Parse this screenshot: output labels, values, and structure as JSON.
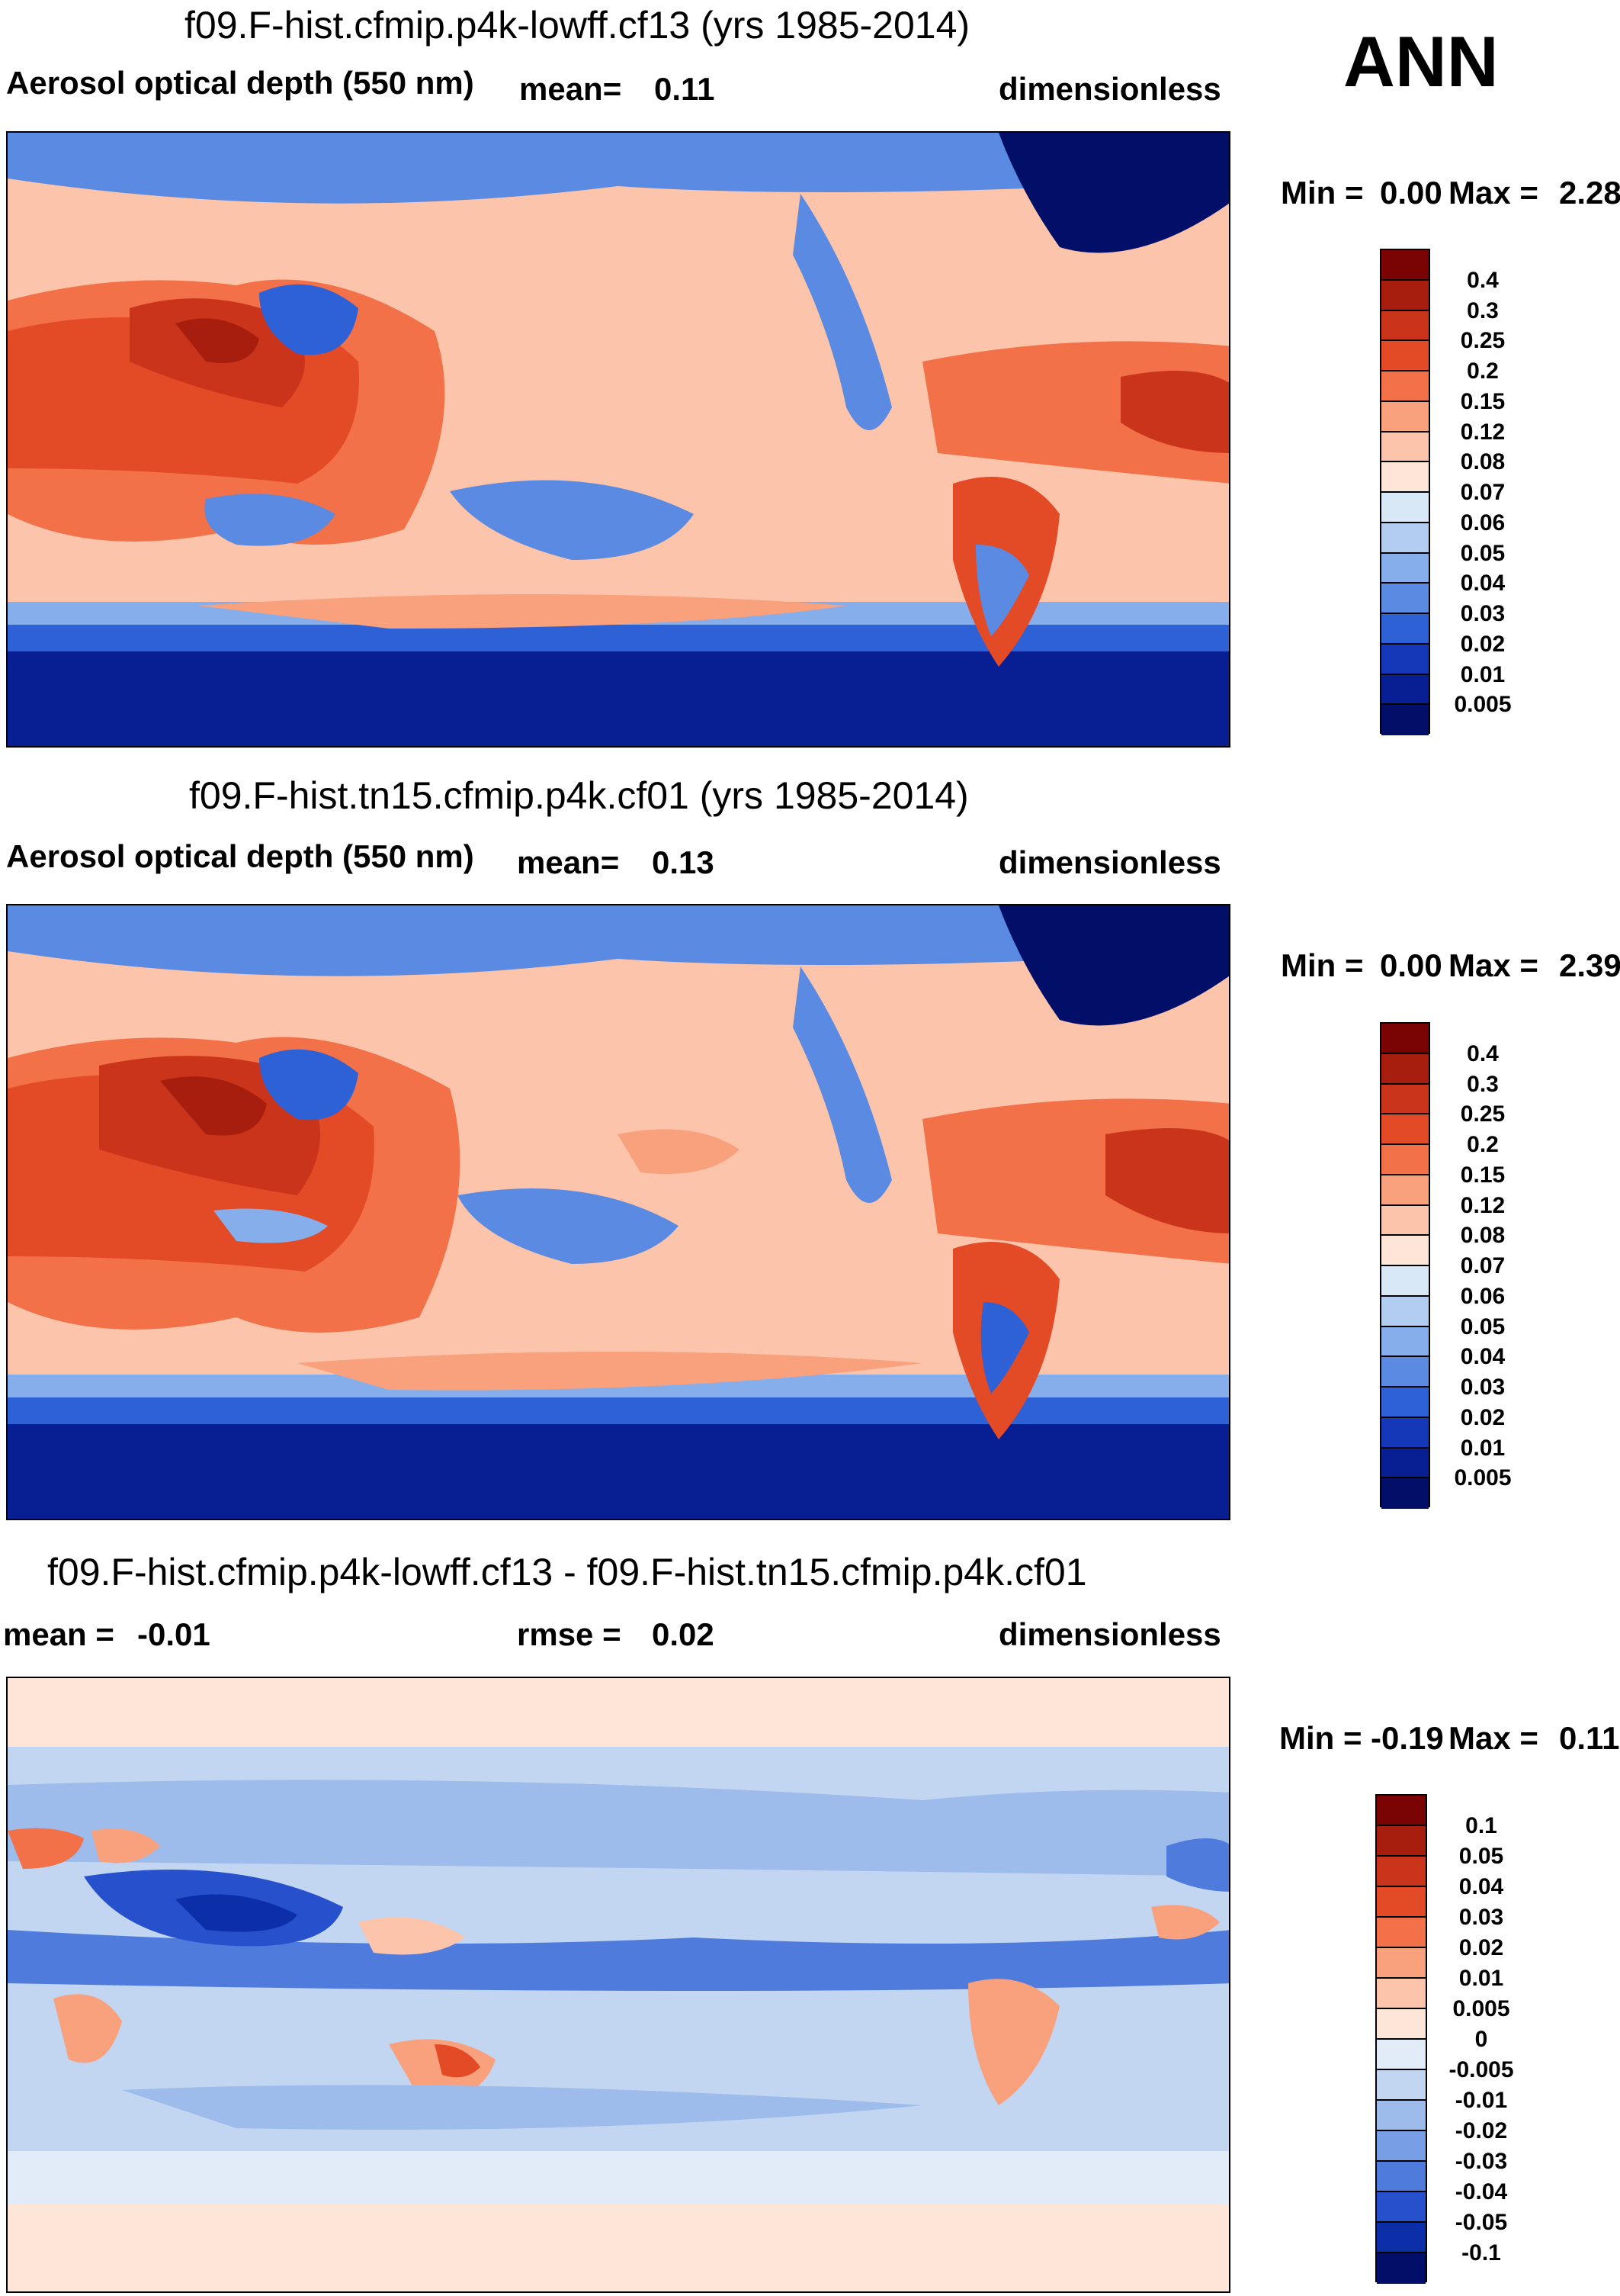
{
  "season": "ANN",
  "panels": [
    {
      "title": "f09.F-hist.cfmip.p4k-lowff.cf13 (yrs 1985-2014)",
      "variable": "Aerosol optical depth (550 nm)",
      "stat_label": "mean=",
      "stat_value": "0.11",
      "units": "dimensionless",
      "min_label": "Min =",
      "min_value": "0.00",
      "max_label": "Max =",
      "max_value": "2.28",
      "colorbar": [
        "0.4",
        "0.3",
        "0.25",
        "0.2",
        "0.15",
        "0.12",
        "0.08",
        "0.07",
        "0.06",
        "0.05",
        "0.04",
        "0.03",
        "0.02",
        "0.01",
        "0.005"
      ]
    },
    {
      "title": "f09.F-hist.tn15.cfmip.p4k.cf01 (yrs 1985-2014)",
      "variable": "Aerosol optical depth (550 nm)",
      "stat_label": "mean=",
      "stat_value": "0.13",
      "units": "dimensionless",
      "min_label": "Min =",
      "min_value": "0.00",
      "max_label": "Max =",
      "max_value": "2.39",
      "colorbar": [
        "0.4",
        "0.3",
        "0.25",
        "0.2",
        "0.15",
        "0.12",
        "0.08",
        "0.07",
        "0.06",
        "0.05",
        "0.04",
        "0.03",
        "0.02",
        "0.01",
        "0.005"
      ]
    },
    {
      "title": "f09.F-hist.cfmip.p4k-lowff.cf13 - f09.F-hist.tn15.cfmip.p4k.cf01",
      "stat_label": "mean =",
      "stat_value": "-0.01",
      "rmse_label": "rmse =",
      "rmse_value": "0.02",
      "units": "dimensionless",
      "min_label": "Min =",
      "min_value": "-0.19",
      "max_label": "Max =",
      "max_value": "0.11",
      "colorbar": [
        "0.1",
        "0.05",
        "0.04",
        "0.03",
        "0.02",
        "0.01",
        "0.005",
        "0",
        "-0.005",
        "-0.01",
        "-0.02",
        "-0.03",
        "-0.04",
        "-0.05",
        "-0.1"
      ]
    }
  ],
  "colors": {
    "abs_scale": [
      "#7a0403",
      "#a81e0e",
      "#c9341a",
      "#e34a26",
      "#f27148",
      "#f9a07c",
      "#fcc5ab",
      "#fde6d8",
      "#d9e8f7",
      "#b2cdf0",
      "#86aeea",
      "#5b8ae2",
      "#2f61d6",
      "#1538b8",
      "#071f93",
      "#020f68"
    ],
    "diff_scale": [
      "#7a0403",
      "#a81e0e",
      "#c9341a",
      "#e34a26",
      "#f27148",
      "#f9a07c",
      "#fcc5ab",
      "#fde6d8",
      "#e2ecf8",
      "#c2d6f2",
      "#9dbcec",
      "#789fe5",
      "#4f7cdc",
      "#2751cc",
      "#0c2ea8",
      "#020f68"
    ]
  }
}
